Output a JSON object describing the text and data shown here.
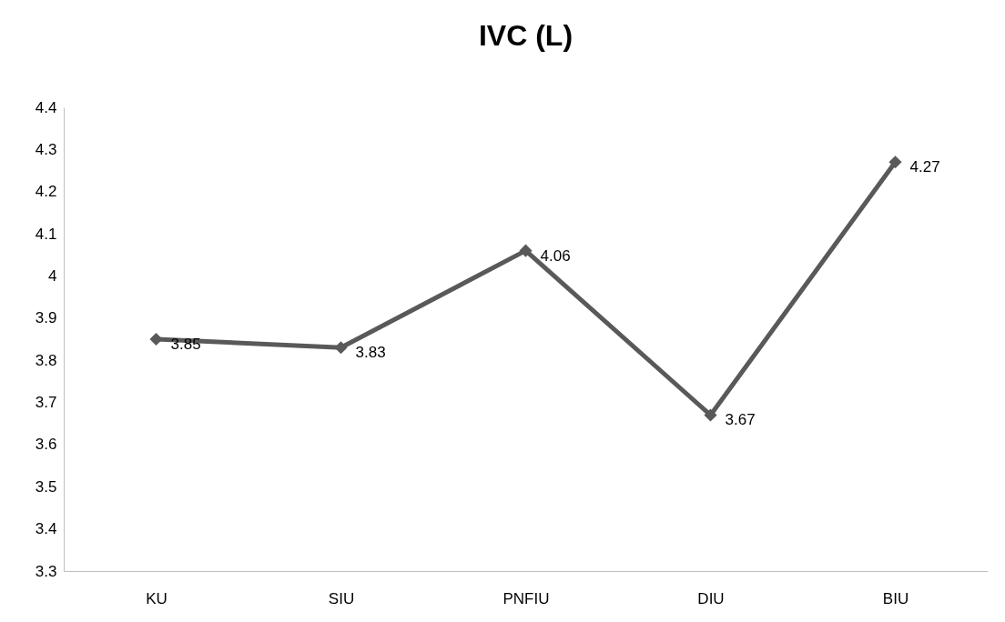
{
  "chart_data": {
    "type": "line",
    "title": "IVC (L)",
    "categories": [
      "KU",
      "SIU",
      "PNFIU",
      "DIU",
      "BIU"
    ],
    "series": [
      {
        "color": "#595959",
        "values": [
          3.85,
          3.83,
          4.06,
          3.67,
          4.27
        ]
      }
    ],
    "ylim": [
      3.3,
      4.4
    ],
    "yticks": [
      3.3,
      3.4,
      3.5,
      3.6,
      3.7,
      3.8,
      3.9,
      4,
      4.1,
      4.2,
      4.3,
      4.4
    ],
    "grid": false,
    "marker": "diamond",
    "line_style": "solid",
    "data_labels": true
  }
}
